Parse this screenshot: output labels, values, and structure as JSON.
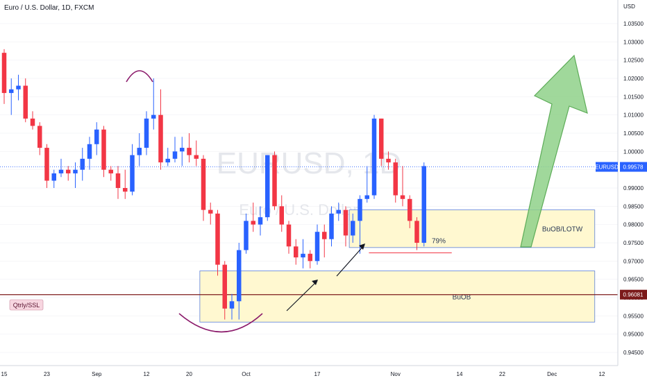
{
  "header": {
    "title": "Euro / U.S. Dollar, 1D, FXCM"
  },
  "watermark": {
    "symbol": "EURUSD, 1D",
    "description": "Euro / U.S. Dollar"
  },
  "colors": {
    "up": "#2962ff",
    "down": "#f23645",
    "grid": "#e0e3eb",
    "axis_line": "#d1d4dc",
    "zone_fill": "#fff8d0",
    "zone_border": "#5b7fd6",
    "arc": "#8b1a6b",
    "ssl_line": "#7b1a1a",
    "arrow_fill": "#8fd18a",
    "arrow_stroke": "#5cab57",
    "current_price_tag": "#2962ff",
    "ssl_tag": "#7b1a1a"
  },
  "chart_data": {
    "type": "candlestick",
    "symbol": "EURUSD",
    "timeframe": "1D",
    "y_axis_unit": "USD",
    "ylim": [
      0.94,
      1.045
    ],
    "y_ticks": [
      "0.94500",
      "0.95000",
      "0.95500",
      "0.96000",
      "0.96500",
      "0.97000",
      "0.97500",
      "0.98000",
      "0.98500",
      "0.99000",
      "0.99500",
      "1.00000",
      "1.00500",
      "1.01000",
      "1.01500",
      "1.02000",
      "1.02500",
      "1.03000",
      "1.03500"
    ],
    "x_tick_labels": [
      {
        "label": "15",
        "bar": 0
      },
      {
        "label": "23",
        "bar": 6
      },
      {
        "label": "Sep",
        "bar": 13
      },
      {
        "label": "12",
        "bar": 20
      },
      {
        "label": "20",
        "bar": 26
      },
      {
        "label": "Oct",
        "bar": 34
      },
      {
        "label": "17",
        "bar": 44
      },
      {
        "label": "Nov",
        "bar": 55
      },
      {
        "label": "14",
        "bar": 64
      },
      {
        "label": "22",
        "bar": 70
      },
      {
        "label": "Dec",
        "bar": 77
      },
      {
        "label": "12",
        "bar": 84
      }
    ],
    "candles": [
      {
        "o": 1.027,
        "h": 1.028,
        "l": 1.013,
        "c": 1.016
      },
      {
        "o": 1.016,
        "h": 1.02,
        "l": 1.01,
        "c": 1.017
      },
      {
        "o": 1.017,
        "h": 1.021,
        "l": 1.014,
        "c": 1.018
      },
      {
        "o": 1.018,
        "h": 1.02,
        "l": 1.008,
        "c": 1.009
      },
      {
        "o": 1.009,
        "h": 1.011,
        "l": 1.006,
        "c": 1.007
      },
      {
        "o": 1.007,
        "h": 1.008,
        "l": 0.999,
        "c": 1.001
      },
      {
        "o": 1.001,
        "h": 1.002,
        "l": 0.99,
        "c": 0.992
      },
      {
        "o": 0.992,
        "h": 0.995,
        "l": 0.99,
        "c": 0.994
      },
      {
        "o": 0.994,
        "h": 0.998,
        "l": 0.993,
        "c": 0.995
      },
      {
        "o": 0.995,
        "h": 0.996,
        "l": 0.992,
        "c": 0.994
      },
      {
        "o": 0.994,
        "h": 0.997,
        "l": 0.99,
        "c": 0.995
      },
      {
        "o": 0.995,
        "h": 1.001,
        "l": 0.992,
        "c": 0.998
      },
      {
        "o": 0.998,
        "h": 1.004,
        "l": 0.995,
        "c": 1.002
      },
      {
        "o": 1.002,
        "h": 1.008,
        "l": 0.999,
        "c": 1.006
      },
      {
        "o": 1.006,
        "h": 1.007,
        "l": 0.993,
        "c": 0.995
      },
      {
        "o": 0.995,
        "h": 0.996,
        "l": 0.992,
        "c": 0.994
      },
      {
        "o": 0.994,
        "h": 0.996,
        "l": 0.987,
        "c": 0.99
      },
      {
        "o": 0.99,
        "h": 0.995,
        "l": 0.987,
        "c": 0.989
      },
      {
        "o": 0.989,
        "h": 1.002,
        "l": 0.988,
        "c": 0.999
      },
      {
        "o": 0.999,
        "h": 1.005,
        "l": 0.996,
        "c": 1.001
      },
      {
        "o": 1.001,
        "h": 1.011,
        "l": 0.999,
        "c": 1.009
      },
      {
        "o": 1.009,
        "h": 1.02,
        "l": 1.006,
        "c": 1.01
      },
      {
        "o": 1.01,
        "h": 1.017,
        "l": 0.995,
        "c": 0.997
      },
      {
        "o": 0.997,
        "h": 1.001,
        "l": 0.996,
        "c": 0.998
      },
      {
        "o": 0.998,
        "h": 1.004,
        "l": 0.997,
        "c": 1.0
      },
      {
        "o": 1.0,
        "h": 1.004,
        "l": 0.996,
        "c": 1.001
      },
      {
        "o": 1.001,
        "h": 1.005,
        "l": 0.997,
        "c": 0.999
      },
      {
        "o": 0.999,
        "h": 1.003,
        "l": 0.996,
        "c": 0.998
      },
      {
        "o": 0.998,
        "h": 0.999,
        "l": 0.981,
        "c": 0.984
      },
      {
        "o": 0.984,
        "h": 0.986,
        "l": 0.98,
        "c": 0.983
      },
      {
        "o": 0.983,
        "h": 0.984,
        "l": 0.966,
        "c": 0.969
      },
      {
        "o": 0.969,
        "h": 0.97,
        "l": 0.954,
        "c": 0.957
      },
      {
        "o": 0.957,
        "h": 0.961,
        "l": 0.954,
        "c": 0.959
      },
      {
        "o": 0.959,
        "h": 0.975,
        "l": 0.954,
        "c": 0.973
      },
      {
        "o": 0.973,
        "h": 0.983,
        "l": 0.972,
        "c": 0.981
      },
      {
        "o": 0.981,
        "h": 0.986,
        "l": 0.978,
        "c": 0.98
      },
      {
        "o": 0.98,
        "h": 0.985,
        "l": 0.977,
        "c": 0.982
      },
      {
        "o": 0.982,
        "h": 0.999,
        "l": 0.981,
        "c": 0.999
      },
      {
        "o": 0.999,
        "h": 1.0,
        "l": 0.984,
        "c": 0.985
      },
      {
        "o": 0.985,
        "h": 0.988,
        "l": 0.978,
        "c": 0.98
      },
      {
        "o": 0.98,
        "h": 0.981,
        "l": 0.972,
        "c": 0.974
      },
      {
        "o": 0.974,
        "h": 0.976,
        "l": 0.969,
        "c": 0.971
      },
      {
        "o": 0.971,
        "h": 0.976,
        "l": 0.968,
        "c": 0.972
      },
      {
        "o": 0.972,
        "h": 0.973,
        "l": 0.968,
        "c": 0.97
      },
      {
        "o": 0.97,
        "h": 0.98,
        "l": 0.969,
        "c": 0.978
      },
      {
        "o": 0.978,
        "h": 0.98,
        "l": 0.971,
        "c": 0.976
      },
      {
        "o": 0.976,
        "h": 0.985,
        "l": 0.974,
        "c": 0.983
      },
      {
        "o": 0.983,
        "h": 0.986,
        "l": 0.981,
        "c": 0.984
      },
      {
        "o": 0.984,
        "h": 0.985,
        "l": 0.974,
        "c": 0.977
      },
      {
        "o": 0.977,
        "h": 0.983,
        "l": 0.975,
        "c": 0.981
      },
      {
        "o": 0.981,
        "h": 0.988,
        "l": 0.972,
        "c": 0.987
      },
      {
        "o": 0.987,
        "h": 0.996,
        "l": 0.986,
        "c": 0.988
      },
      {
        "o": 0.988,
        "h": 1.01,
        "l": 0.987,
        "c": 1.009
      },
      {
        "o": 1.009,
        "h": 1.009,
        "l": 0.996,
        "c": 0.998
      },
      {
        "o": 0.998,
        "h": 1.0,
        "l": 0.995,
        "c": 0.997
      },
      {
        "o": 0.997,
        "h": 0.998,
        "l": 0.986,
        "c": 0.988
      },
      {
        "o": 0.988,
        "h": 0.996,
        "l": 0.985,
        "c": 0.987
      },
      {
        "o": 0.987,
        "h": 0.988,
        "l": 0.979,
        "c": 0.981
      },
      {
        "o": 0.981,
        "h": 0.982,
        "l": 0.973,
        "c": 0.975
      },
      {
        "o": 0.975,
        "h": 0.997,
        "l": 0.974,
        "c": 0.996
      }
    ],
    "current_price": {
      "label": "EURUSD",
      "value": "0.99578",
      "price": 0.99578
    },
    "ssl_level": {
      "label": "Qtrly/SSL",
      "value": "0.96081",
      "price": 0.96081
    },
    "zones": [
      {
        "label": "BuOB/LOTW",
        "from_bar": 48.5,
        "to_bar": 83,
        "top": 0.984,
        "bottom": 0.9737
      },
      {
        "label": "BuOB",
        "from_bar": 27.5,
        "to_bar": 83,
        "top": 0.9673,
        "bottom": 0.9533
      }
    ],
    "retracement": {
      "label": "79%",
      "from_bar": 49.5,
      "to_bar": 59,
      "price": 0.973
    }
  }
}
